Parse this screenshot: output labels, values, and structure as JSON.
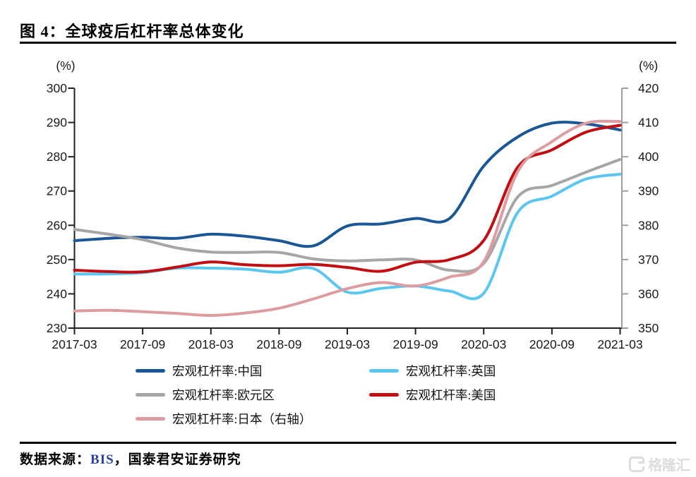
{
  "title": "图 4：全球疫后杠杆率总体变化",
  "source_note": {
    "prefix": "数据来源：",
    "org": "BIS",
    "suffix": "，国泰君安证券研究"
  },
  "watermark": {
    "text": "格隆汇"
  },
  "colors": {
    "axis": "#1f1f1f",
    "right_axis": "#9e9e9e",
    "text": "#111111",
    "divider": "#000000",
    "bis_blue": "#2B3FA5",
    "watermark_gray": "#dcdcdc"
  },
  "chart_data": {
    "type": "line",
    "x": [
      "2017-03",
      "2017-06",
      "2017-09",
      "2017-12",
      "2018-03",
      "2018-06",
      "2018-09",
      "2018-12",
      "2019-03",
      "2019-06",
      "2019-09",
      "2019-12",
      "2020-03",
      "2020-06",
      "2020-09",
      "2020-12",
      "2021-03"
    ],
    "x_tick_every": 2,
    "x_tick_labels": [
      "2017-03",
      "2017-09",
      "2018-03",
      "2018-09",
      "2019-03",
      "2019-09",
      "2020-03",
      "2020-09",
      "2021-03"
    ],
    "left_axis": {
      "label": "(%)",
      "min": 230,
      "max": 300,
      "step": 10
    },
    "right_axis": {
      "label": "(%)",
      "min": 350,
      "max": 420,
      "step": 10
    },
    "grid": false,
    "legend_position": "bottom",
    "series": [
      {
        "name": "宏观杠杆率:中国",
        "axis": "left",
        "color": "#1B5796",
        "values": [
          255.5,
          256.2,
          256.5,
          256.2,
          257.4,
          256.8,
          255.5,
          254.0,
          259.8,
          260.4,
          262.0,
          262.0,
          277.3,
          285.8,
          289.8,
          289.6,
          287.8
        ]
      },
      {
        "name": "宏观杠杆率:英国",
        "axis": "left",
        "color": "#5BC6F0",
        "values": [
          245.8,
          245.8,
          246.2,
          247.5,
          247.5,
          247.2,
          246.3,
          247.4,
          240.5,
          241.6,
          242.3,
          240.8,
          240.2,
          263.8,
          268.5,
          273.5,
          274.9
        ]
      },
      {
        "name": "宏观杠杆率:欧元区",
        "axis": "left",
        "color": "#A6A6A6",
        "values": [
          258.8,
          257.4,
          255.8,
          253.4,
          252.2,
          252.1,
          252.1,
          250.2,
          249.6,
          249.9,
          249.9,
          246.9,
          248.9,
          268.3,
          271.6,
          275.5,
          279.2
        ]
      },
      {
        "name": "宏观杠杆率:美国",
        "axis": "left",
        "color": "#C30D11",
        "values": [
          246.9,
          246.5,
          246.4,
          247.8,
          249.3,
          248.5,
          248.2,
          248.6,
          247.7,
          246.6,
          249.2,
          250.0,
          255.6,
          277.0,
          282.0,
          287.2,
          289.2
        ]
      },
      {
        "name": "宏观杠杆率:日本（右轴）",
        "axis": "right",
        "color": "#DC9CA0",
        "values": [
          355.0,
          355.2,
          354.8,
          354.3,
          353.7,
          354.4,
          355.8,
          358.5,
          361.5,
          363.3,
          362.3,
          364.9,
          369.4,
          395.7,
          404.4,
          409.8,
          410.3
        ]
      }
    ],
    "legend_columns": [
      [
        0,
        2,
        4
      ],
      [
        1,
        3
      ]
    ]
  }
}
